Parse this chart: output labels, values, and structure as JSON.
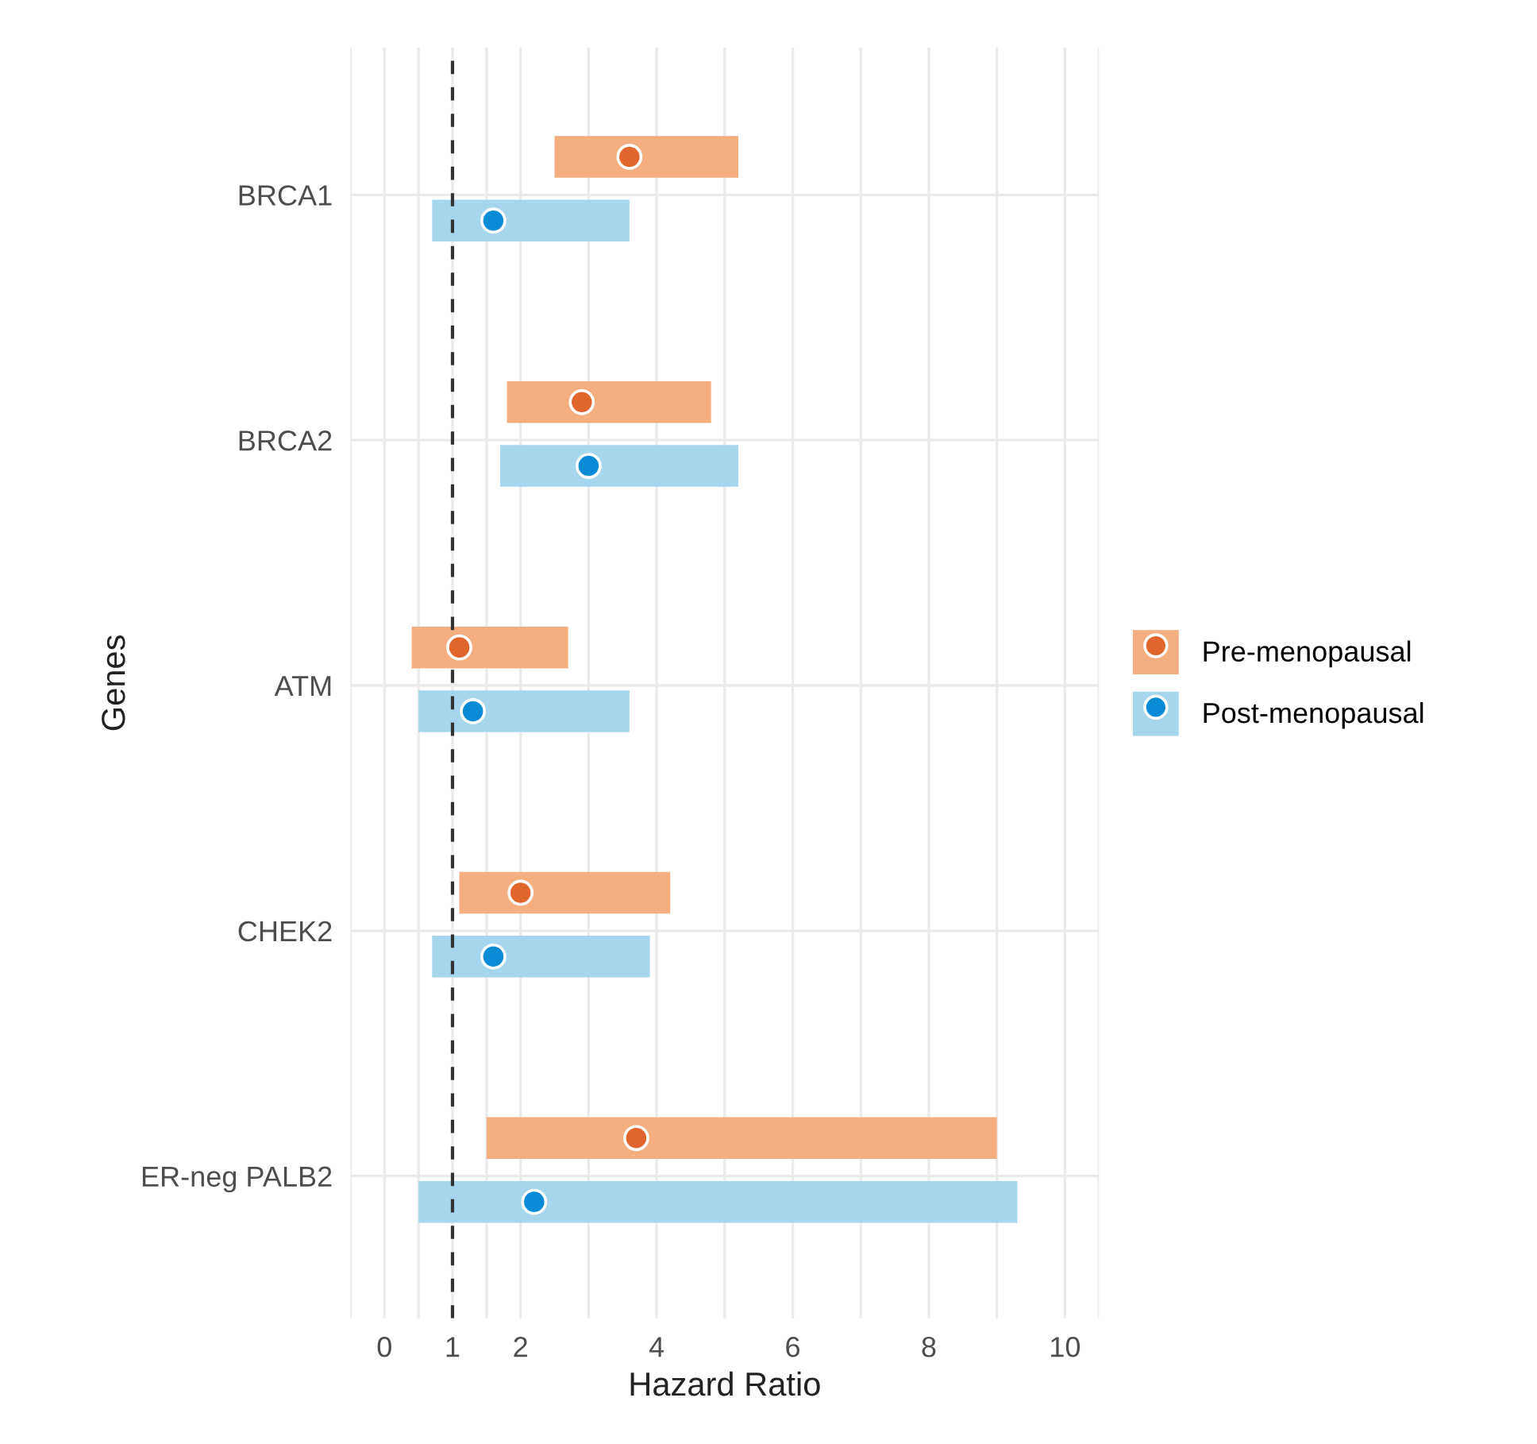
{
  "chart_data": {
    "type": "bar",
    "orientation": "horizontal",
    "xlabel": "Hazard Ratio",
    "ylabel": "Genes",
    "categories": [
      "BRCA1",
      "BRCA2",
      "ATM",
      "CHEK2",
      "ER-neg PALB2"
    ],
    "series": [
      {
        "name": "Pre-menopausal",
        "color": "#f4ae7f",
        "base": [
          2.5,
          1.8,
          0.4,
          1.1,
          1.5
        ],
        "values": [
          2.7,
          3.0,
          2.3,
          3.1,
          7.5
        ]
      },
      {
        "name": "Post-menopausal",
        "color": "#a6d5ee",
        "base": [
          0.7,
          1.7,
          0.5,
          0.7,
          0.5
        ],
        "values": [
          2.9,
          3.5,
          3.1,
          3.2,
          8.8
        ]
      },
      {
        "type": "scatter",
        "color": "#e0662e",
        "marker": "circle",
        "values": [
          3.6,
          2.9,
          1.1,
          2.0,
          3.7
        ]
      },
      {
        "type": "scatter",
        "color": "#0a8bd6",
        "marker": "circle",
        "values": [
          1.6,
          3.0,
          1.3,
          1.6,
          2.2
        ]
      }
    ],
    "xlim": [
      -0.5,
      10.5
    ],
    "xticks": [
      {
        "value": -0.5,
        "label": null
      },
      0,
      {
        "value": 0.5,
        "label": null
      },
      1,
      {
        "value": 1.5,
        "label": null
      },
      2,
      {
        "value": 3,
        "label": null
      },
      4,
      {
        "value": 5,
        "label": null
      },
      6,
      {
        "value": 7,
        "label": null
      },
      8,
      {
        "value": 9,
        "label": null
      },
      10,
      {
        "value": 10.5,
        "label": null
      }
    ],
    "ref_lines": [
      {
        "axis": "x",
        "value": 1,
        "color": "#333333",
        "line_style": "dashed"
      }
    ],
    "grid": true,
    "legend": "right"
  }
}
